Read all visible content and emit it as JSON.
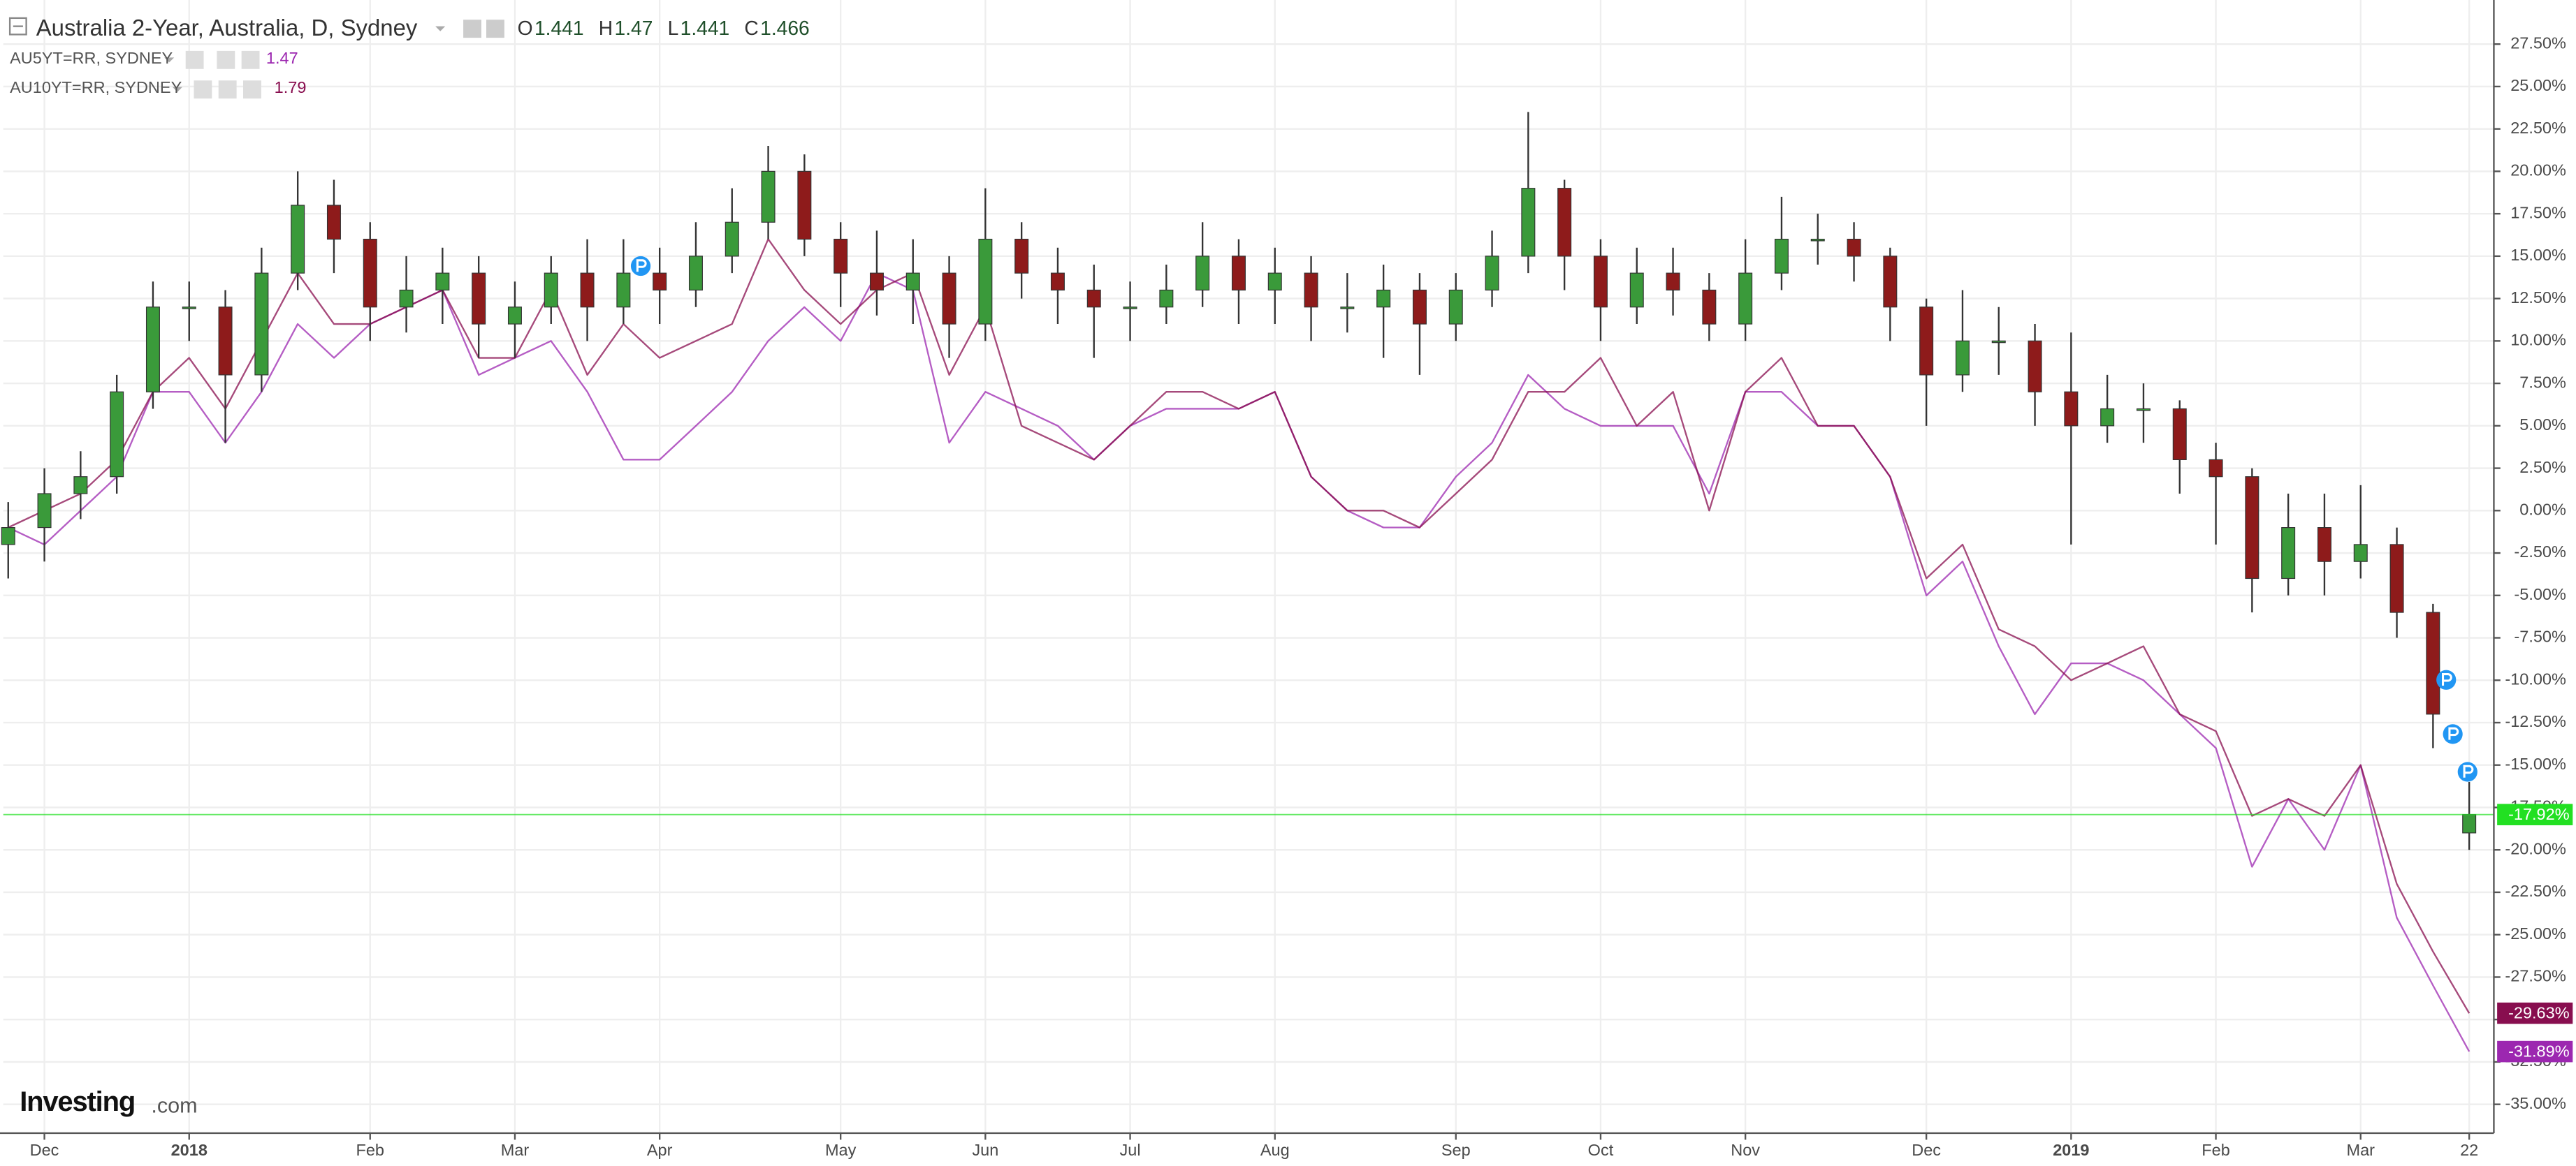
{
  "chart_data": {
    "type": "candlestick",
    "title": "Australia 2-Year, Australia, D, Sydney",
    "ohlc": [
      {
        "key": "O",
        "value": 1.441
      },
      {
        "key": "H",
        "value": 1.47
      },
      {
        "key": "L",
        "value": 1.441
      },
      {
        "key": "C",
        "value": 1.466
      }
    ],
    "categories": [
      null,
      "Dec",
      null,
      null,
      null,
      "2018",
      null,
      null,
      null,
      null,
      "Feb",
      null,
      null,
      null,
      "Mar",
      null,
      null,
      null,
      "Apr",
      null,
      null,
      null,
      null,
      "May",
      null,
      null,
      null,
      "Jun",
      null,
      null,
      null,
      "Jul",
      null,
      null,
      null,
      "Aug",
      null,
      null,
      null,
      null,
      "Sep",
      null,
      null,
      null,
      "Oct",
      null,
      null,
      null,
      "Nov",
      null,
      null,
      null,
      null,
      "Dec",
      null,
      null,
      null,
      "2019",
      null,
      null,
      null,
      "Feb",
      null,
      null,
      null,
      "Mar",
      null,
      null,
      "22"
    ],
    "open": [
      -2,
      -1,
      1,
      2,
      7,
      12,
      12,
      8,
      14,
      18,
      16,
      12,
      13,
      14,
      11,
      12,
      14,
      12,
      14,
      13,
      15,
      17,
      20,
      16,
      14,
      13,
      14,
      11,
      16,
      14,
      13,
      12,
      12,
      13,
      15,
      13,
      14,
      12,
      12,
      13,
      11,
      13,
      15,
      19,
      15,
      12,
      14,
      13,
      11,
      14,
      16,
      16,
      15,
      12,
      8,
      10,
      10,
      7,
      5,
      6,
      6,
      3,
      2,
      -4,
      -1,
      -3,
      -2,
      -6,
      -19
    ],
    "high": [
      0.5,
      2.5,
      3.5,
      8,
      13.5,
      13.5,
      13,
      15.5,
      20,
      19.5,
      17,
      15,
      15.5,
      15,
      13.5,
      15,
      16,
      16,
      15.5,
      17,
      19,
      21.5,
      21,
      17,
      16.5,
      16,
      15,
      19,
      17,
      15.5,
      14.5,
      13.5,
      14.5,
      17,
      16,
      15.5,
      15,
      14,
      14.5,
      14,
      14,
      16.5,
      23.5,
      19.5,
      16,
      15.5,
      15.5,
      14,
      16,
      18.5,
      17.5,
      17,
      15.5,
      12.5,
      13,
      12,
      11,
      10.5,
      8,
      7.5,
      6.5,
      4,
      2.5,
      1,
      1,
      1.5,
      -1,
      -5.5,
      -16
    ],
    "low": [
      -4,
      -3,
      -0.5,
      1,
      6,
      10,
      4,
      7,
      13,
      14,
      10,
      10.5,
      11,
      9,
      9,
      11,
      10,
      11,
      11,
      12,
      14,
      16,
      15,
      12,
      11.5,
      11,
      9,
      10,
      12.5,
      11,
      9,
      10,
      11,
      12,
      11,
      11,
      10,
      10.5,
      9,
      8,
      10,
      12,
      14,
      13,
      10,
      11,
      11.5,
      10,
      10,
      13,
      14.5,
      13.5,
      10,
      5,
      7,
      8,
      5,
      -2,
      4,
      4,
      1,
      -2,
      -6,
      -5,
      -5,
      -4,
      -7.5,
      -14,
      -20
    ],
    "close": [
      -1,
      1,
      2,
      7,
      12,
      12,
      8,
      14,
      18,
      16,
      12,
      13,
      14,
      11,
      12,
      14,
      12,
      14,
      13,
      15,
      17,
      20,
      16,
      14,
      13,
      14,
      11,
      16,
      14,
      13,
      12,
      12,
      13,
      15,
      13,
      14,
      12,
      12,
      13,
      11,
      13,
      15,
      19,
      15,
      12,
      14,
      13,
      11,
      14,
      16,
      16,
      15,
      12,
      8,
      10,
      10,
      7,
      5,
      6,
      6,
      3,
      2,
      -4,
      -1,
      -3,
      -2,
      -6,
      -12,
      -17.92
    ],
    "last_value_label": "-17.92%",
    "up_color": "#3a9a3a",
    "down_color": "#8e1b1b",
    "price_line_color": "#22e022",
    "series": [
      {
        "name": "AU5YT=RR, SYDNEY",
        "color": "#9c27b0",
        "quote": 1.47,
        "last_value_label": "-31.89%",
        "values": [
          -1,
          -2,
          0,
          2,
          7,
          7,
          4,
          7,
          11,
          9,
          11,
          12,
          13,
          8,
          9,
          10,
          7,
          3,
          3,
          5,
          7,
          10,
          12,
          10,
          14,
          13,
          4,
          7,
          6,
          5,
          3,
          5,
          6,
          6,
          6,
          7,
          2,
          0,
          -1,
          -1,
          2,
          4,
          8,
          6,
          5,
          5,
          5,
          1,
          7,
          7,
          5,
          5,
          2,
          -5,
          -3,
          -8,
          -12,
          -9,
          -9,
          -10,
          -12,
          -14,
          -21,
          -17,
          -20,
          -15,
          -24,
          -28,
          -31.89
        ]
      },
      {
        "name": "AU10YT=RR, SYDNEY",
        "color": "#880e4f",
        "quote": 1.79,
        "last_value_label": "-29.63%",
        "values": [
          -1,
          0,
          1,
          3,
          7,
          9,
          6,
          10,
          14,
          11,
          11,
          12,
          13,
          9,
          9,
          13,
          8,
          11,
          9,
          10,
          11,
          16,
          13,
          11,
          13,
          14,
          8,
          12,
          5,
          4,
          3,
          5,
          7,
          7,
          6,
          7,
          2,
          0,
          0,
          -1,
          1,
          3,
          7,
          7,
          9,
          5,
          7,
          0,
          7,
          9,
          5,
          5,
          2,
          -4,
          -2,
          -7,
          -8,
          -10,
          -9,
          -8,
          -12,
          -13,
          -18,
          -17,
          -18,
          -15,
          -22,
          -26,
          -29.63
        ]
      }
    ],
    "ylim": [
      -36.7,
      30.1
    ],
    "yticks": [
      {
        "value": 27.5,
        "label": "27.50%"
      },
      {
        "value": 25,
        "label": "25.00%"
      },
      {
        "value": 22.5,
        "label": "22.50%"
      },
      {
        "value": 20,
        "label": "20.00%"
      },
      {
        "value": 17.5,
        "label": "17.50%"
      },
      {
        "value": 15,
        "label": "15.00%"
      },
      {
        "value": 12.5,
        "label": "12.50%"
      },
      {
        "value": 10,
        "label": "10.00%"
      },
      {
        "value": 7.5,
        "label": "7.50%"
      },
      {
        "value": 5,
        "label": "5.00%"
      },
      {
        "value": 2.5,
        "label": "2.50%"
      },
      {
        "value": 0,
        "label": "0.00%"
      },
      {
        "value": -2.5,
        "label": "-2.50%"
      },
      {
        "value": -5,
        "label": "-5.00%"
      },
      {
        "value": -7.5,
        "label": "-7.50%"
      },
      {
        "value": -10,
        "label": "-10.00%"
      },
      {
        "value": -12.5,
        "label": "-12.50%"
      },
      {
        "value": -15,
        "label": "-15.00%"
      },
      {
        "value": -17.5,
        "label": "-17.50%"
      },
      {
        "value": -20,
        "label": "-20.00%"
      },
      {
        "value": -22.5,
        "label": "-22.50%"
      },
      {
        "value": -25,
        "label": "-25.00%"
      },
      {
        "value": -27.5,
        "label": "-27.50%"
      },
      {
        "value": -30,
        "label": "-30.00%"
      },
      {
        "value": -32.5,
        "label": "-32.50%"
      },
      {
        "value": -35,
        "label": "-35.00%"
      }
    ],
    "grid": true,
    "brand": [
      "Investing",
      ".com"
    ]
  }
}
